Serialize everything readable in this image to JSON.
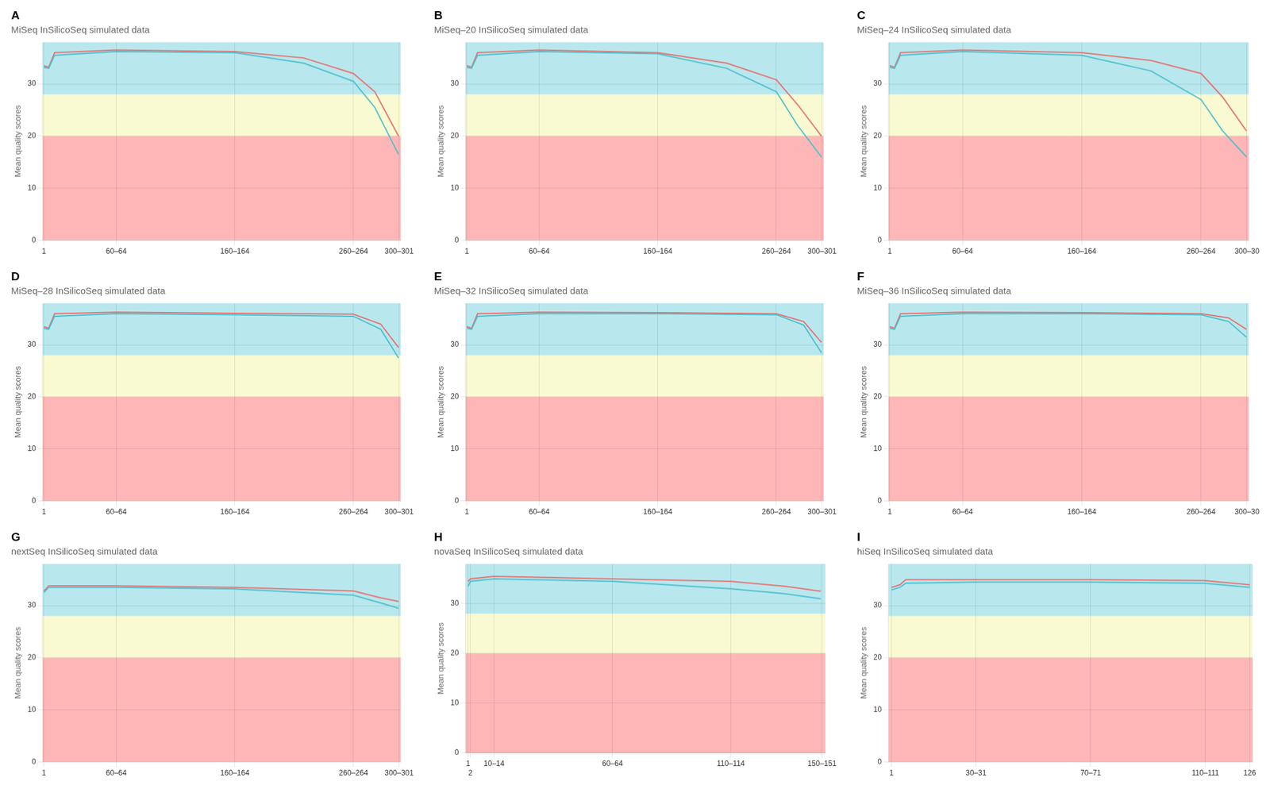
{
  "chart_data": [
    {
      "type": "line",
      "title": "MiSeq InSilicoSeq simulated data",
      "annotations": [
        "A"
      ],
      "ylabel": "Mean quality scores",
      "xlim": [
        0,
        302
      ],
      "xticks": [
        1,
        {
          "value": 62,
          "label": "60–64"
        },
        {
          "value": 162,
          "label": "160–164"
        },
        {
          "value": 262,
          "label": "260–264"
        },
        {
          "value": 300.5,
          "label": "300–301"
        }
      ],
      "ylim": [
        0,
        38
      ],
      "yticks": [
        0,
        10,
        20,
        30
      ],
      "grid": true,
      "bands": [
        {
          "range": [
            0,
            20
          ],
          "color": "#FFB6B6"
        },
        {
          "range": [
            20,
            28
          ],
          "color": "#FAFAD2"
        },
        {
          "range": [
            28,
            38
          ],
          "color": "#B8E8EE"
        }
      ],
      "series": [
        {
          "color": "#E87070",
          "x": [
            1,
            5,
            10,
            62,
            162,
            220,
            262,
            280,
            300
          ],
          "values": [
            33.5,
            33.2,
            36.0,
            36.5,
            36.2,
            35.0,
            32.0,
            28.5,
            20.0
          ]
        },
        {
          "color": "#4DBFCC",
          "x": [
            1,
            5,
            10,
            62,
            162,
            220,
            262,
            280,
            300
          ],
          "values": [
            33.2,
            33.0,
            35.5,
            36.2,
            36.0,
            34.0,
            30.5,
            25.5,
            16.5
          ]
        }
      ]
    },
    {
      "type": "line",
      "title": "MiSeq–20 InSilicoSeq simulated data",
      "annotations": [
        "B"
      ],
      "ylabel": "Mean quality scores",
      "xlim": [
        0,
        302
      ],
      "xticks": [
        1,
        {
          "value": 62,
          "label": "60–64"
        },
        {
          "value": 162,
          "label": "160–164"
        },
        {
          "value": 262,
          "label": "260–264"
        },
        {
          "value": 300.5,
          "label": "300–301"
        }
      ],
      "ylim": [
        0,
        38
      ],
      "yticks": [
        0,
        10,
        20,
        30
      ],
      "grid": true,
      "bands": [
        {
          "range": [
            0,
            20
          ],
          "color": "#FFB6B6"
        },
        {
          "range": [
            20,
            28
          ],
          "color": "#FAFAD2"
        },
        {
          "range": [
            28,
            38
          ],
          "color": "#B8E8EE"
        }
      ],
      "series": [
        {
          "color": "#E87070",
          "x": [
            1,
            5,
            10,
            62,
            162,
            220,
            262,
            280,
            300
          ],
          "values": [
            33.5,
            33.2,
            36.0,
            36.5,
            36.0,
            34.0,
            30.8,
            26.0,
            20.0
          ]
        },
        {
          "color": "#4DBFCC",
          "x": [
            1,
            5,
            10,
            62,
            162,
            220,
            262,
            280,
            300
          ],
          "values": [
            33.2,
            33.0,
            35.5,
            36.2,
            35.8,
            33.0,
            28.5,
            22.0,
            16.0
          ]
        }
      ]
    },
    {
      "type": "line",
      "title": "MiSeq–24 InSilicoSeq simulated data",
      "annotations": [
        "C"
      ],
      "ylabel": "Mean quality scores",
      "xlim": [
        0,
        302
      ],
      "xticks": [
        1,
        {
          "value": 62,
          "label": "60–64"
        },
        {
          "value": 162,
          "label": "160–164"
        },
        {
          "value": 262,
          "label": "260–264"
        },
        {
          "value": 300.5,
          "label": "300–30"
        }
      ],
      "ylim": [
        0,
        38
      ],
      "yticks": [
        0,
        10,
        20,
        30
      ],
      "grid": true,
      "bands": [
        {
          "range": [
            0,
            20
          ],
          "color": "#FFB6B6"
        },
        {
          "range": [
            20,
            28
          ],
          "color": "#FAFAD2"
        },
        {
          "range": [
            28,
            38
          ],
          "color": "#B8E8EE"
        }
      ],
      "series": [
        {
          "color": "#E87070",
          "x": [
            1,
            5,
            10,
            62,
            162,
            220,
            262,
            280,
            300
          ],
          "values": [
            33.5,
            33.2,
            36.0,
            36.5,
            36.0,
            34.5,
            32.0,
            27.5,
            21.0
          ]
        },
        {
          "color": "#4DBFCC",
          "x": [
            1,
            5,
            10,
            62,
            162,
            220,
            262,
            280,
            300
          ],
          "values": [
            33.2,
            33.0,
            35.5,
            36.2,
            35.5,
            32.5,
            27.0,
            21.0,
            16.0
          ]
        }
      ]
    },
    {
      "type": "line",
      "title": "MiSeq–28 InSilicoSeq simulated data",
      "annotations": [
        "D"
      ],
      "ylabel": "Mean quality scores",
      "xlim": [
        0,
        302
      ],
      "xticks": [
        1,
        {
          "value": 62,
          "label": "60–64"
        },
        {
          "value": 162,
          "label": "160–164"
        },
        {
          "value": 262,
          "label": "260–264"
        },
        {
          "value": 300.5,
          "label": "300–301"
        }
      ],
      "ylim": [
        0,
        38
      ],
      "yticks": [
        0,
        10,
        20,
        30
      ],
      "grid": true,
      "bands": [
        {
          "range": [
            0,
            20
          ],
          "color": "#FFB6B6"
        },
        {
          "range": [
            20,
            28
          ],
          "color": "#FAFAD2"
        },
        {
          "range": [
            28,
            38
          ],
          "color": "#B8E8EE"
        }
      ],
      "series": [
        {
          "color": "#E87070",
          "x": [
            1,
            5,
            10,
            62,
            162,
            262,
            285,
            300
          ],
          "values": [
            33.5,
            33.2,
            36.0,
            36.3,
            36.1,
            35.9,
            34.0,
            29.5
          ]
        },
        {
          "color": "#4DBFCC",
          "x": [
            1,
            5,
            10,
            62,
            162,
            262,
            285,
            300
          ],
          "values": [
            33.2,
            33.0,
            35.5,
            36.0,
            35.8,
            35.5,
            33.0,
            27.5
          ]
        }
      ]
    },
    {
      "type": "line",
      "title": "MiSeq–32 InSilicoSeq simulated data",
      "annotations": [
        "E"
      ],
      "ylabel": "Mean quality scores",
      "xlim": [
        0,
        302
      ],
      "xticks": [
        1,
        {
          "value": 62,
          "label": "60–64"
        },
        {
          "value": 162,
          "label": "160–164"
        },
        {
          "value": 262,
          "label": "260–264"
        },
        {
          "value": 300.5,
          "label": "300–301"
        }
      ],
      "ylim": [
        0,
        38
      ],
      "yticks": [
        0,
        10,
        20,
        30
      ],
      "grid": true,
      "bands": [
        {
          "range": [
            0,
            20
          ],
          "color": "#FFB6B6"
        },
        {
          "range": [
            20,
            28
          ],
          "color": "#FAFAD2"
        },
        {
          "range": [
            28,
            38
          ],
          "color": "#B8E8EE"
        }
      ],
      "series": [
        {
          "color": "#E87070",
          "x": [
            1,
            5,
            10,
            62,
            162,
            262,
            285,
            300
          ],
          "values": [
            33.5,
            33.2,
            36.0,
            36.3,
            36.2,
            36.0,
            34.5,
            30.5
          ]
        },
        {
          "color": "#4DBFCC",
          "x": [
            1,
            5,
            10,
            62,
            162,
            262,
            285,
            300
          ],
          "values": [
            33.2,
            33.0,
            35.5,
            36.0,
            36.0,
            35.8,
            33.8,
            28.5
          ]
        }
      ]
    },
    {
      "type": "line",
      "title": "MiSeq–36 InSilicoSeq simulated data",
      "annotations": [
        "F"
      ],
      "ylabel": "Mean quality scores",
      "xlim": [
        0,
        302
      ],
      "xticks": [
        1,
        {
          "value": 62,
          "label": "60–64"
        },
        {
          "value": 162,
          "label": "160–164"
        },
        {
          "value": 262,
          "label": "260–264"
        },
        {
          "value": 300.5,
          "label": "300–30"
        }
      ],
      "ylim": [
        0,
        38
      ],
      "yticks": [
        0,
        10,
        20,
        30
      ],
      "grid": true,
      "bands": [
        {
          "range": [
            0,
            20
          ],
          "color": "#FFB6B6"
        },
        {
          "range": [
            20,
            28
          ],
          "color": "#FAFAD2"
        },
        {
          "range": [
            28,
            38
          ],
          "color": "#B8E8EE"
        }
      ],
      "series": [
        {
          "color": "#E87070",
          "x": [
            1,
            5,
            10,
            62,
            162,
            262,
            285,
            300
          ],
          "values": [
            33.5,
            33.2,
            36.0,
            36.3,
            36.2,
            36.0,
            35.2,
            33.0
          ]
        },
        {
          "color": "#4DBFCC",
          "x": [
            1,
            5,
            10,
            62,
            162,
            262,
            285,
            300
          ],
          "values": [
            33.2,
            33.0,
            35.5,
            36.0,
            36.0,
            35.8,
            34.5,
            31.5
          ]
        }
      ]
    },
    {
      "type": "line",
      "title": "nextSeq InSilicoSeq simulated data",
      "annotations": [
        "G"
      ],
      "ylabel": "Mean quality scores",
      "xlim": [
        0,
        302
      ],
      "xticks": [
        1,
        {
          "value": 62,
          "label": "60–64"
        },
        {
          "value": 162,
          "label": "160–164"
        },
        {
          "value": 262,
          "label": "260–264"
        },
        {
          "value": 300.5,
          "label": "300–301"
        }
      ],
      "ylim": [
        0,
        38
      ],
      "yticks": [
        0,
        10,
        20,
        30
      ],
      "grid": true,
      "bands": [
        {
          "range": [
            0,
            20
          ],
          "color": "#FFB6B6"
        },
        {
          "range": [
            20,
            28
          ],
          "color": "#FAFAD2"
        },
        {
          "range": [
            28,
            38
          ],
          "color": "#B8E8EE"
        }
      ],
      "series": [
        {
          "color": "#E87070",
          "x": [
            1,
            5,
            62,
            162,
            262,
            285,
            300
          ],
          "values": [
            32.8,
            33.8,
            33.8,
            33.5,
            32.8,
            31.5,
            30.8
          ]
        },
        {
          "color": "#4DBFCC",
          "x": [
            1,
            5,
            62,
            162,
            262,
            285,
            300
          ],
          "values": [
            32.5,
            33.5,
            33.5,
            33.2,
            32.0,
            30.5,
            29.5
          ]
        }
      ]
    },
    {
      "type": "line",
      "title": "novaSeq InSilicoSeq simulated data",
      "annotations": [
        "H"
      ],
      "ylabel": "Mean quality scores",
      "xlim": [
        0,
        152
      ],
      "xticks": [
        1,
        2,
        {
          "value": 12,
          "label": "10–14"
        },
        {
          "value": 62,
          "label": "60–64"
        },
        {
          "value": 112,
          "label": "110–114"
        },
        {
          "value": 150.5,
          "label": "150–151"
        }
      ],
      "ylim": [
        0,
        38
      ],
      "yticks": [
        0,
        10,
        20,
        30
      ],
      "grid": true,
      "bands": [
        {
          "range": [
            0,
            20
          ],
          "color": "#FFB6B6"
        },
        {
          "range": [
            20,
            28
          ],
          "color": "#FAFAD2"
        },
        {
          "range": [
            28,
            38
          ],
          "color": "#B8E8EE"
        }
      ],
      "series": [
        {
          "color": "#E87070",
          "x": [
            1,
            2,
            12,
            62,
            112,
            135,
            150
          ],
          "values": [
            34.5,
            35.0,
            35.5,
            35.0,
            34.5,
            33.5,
            32.5
          ]
        },
        {
          "color": "#4DBFCC",
          "x": [
            1,
            2,
            12,
            62,
            112,
            135,
            150
          ],
          "values": [
            33.5,
            34.5,
            35.0,
            34.5,
            33.0,
            32.0,
            31.0
          ]
        }
      ]
    },
    {
      "type": "line",
      "title": "hiSeq InSilicoSeq simulated data",
      "annotations": [
        "I"
      ],
      "ylabel": "Mean quality scores",
      "xlim": [
        0,
        127
      ],
      "xticks": [
        1,
        {
          "value": 30.5,
          "label": "30–31"
        },
        {
          "value": 70.5,
          "label": "70–71"
        },
        {
          "value": 110.5,
          "label": "110–111"
        },
        126
      ],
      "ylim": [
        0,
        38
      ],
      "yticks": [
        0,
        10,
        20,
        30
      ],
      "grid": true,
      "bands": [
        {
          "range": [
            0,
            20
          ],
          "color": "#FFB6B6"
        },
        {
          "range": [
            20,
            28
          ],
          "color": "#FAFAD2"
        },
        {
          "range": [
            28,
            38
          ],
          "color": "#B8E8EE"
        }
      ],
      "series": [
        {
          "color": "#E87070",
          "x": [
            1,
            4,
            6,
            30,
            70,
            110,
            126
          ],
          "values": [
            33.5,
            34.0,
            35.0,
            35.0,
            35.0,
            34.8,
            34.0
          ]
        },
        {
          "color": "#4DBFCC",
          "x": [
            1,
            4,
            6,
            30,
            70,
            110,
            126
          ],
          "values": [
            33.0,
            33.5,
            34.3,
            34.5,
            34.5,
            34.3,
            33.5
          ]
        }
      ]
    }
  ]
}
